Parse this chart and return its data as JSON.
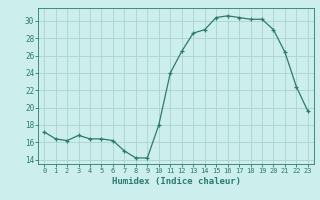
{
  "x": [
    0,
    1,
    2,
    3,
    4,
    5,
    6,
    7,
    8,
    9,
    10,
    11,
    12,
    13,
    14,
    15,
    16,
    17,
    18,
    19,
    20,
    21,
    22,
    23
  ],
  "y": [
    17.2,
    16.4,
    16.2,
    16.8,
    16.4,
    16.4,
    16.2,
    15.0,
    14.2,
    14.2,
    18.0,
    24.0,
    26.5,
    28.6,
    29.0,
    30.4,
    30.6,
    30.4,
    30.2,
    30.2,
    29.0,
    26.4,
    22.4,
    19.6
  ],
  "xlim": [
    -0.5,
    23.5
  ],
  "ylim": [
    13.5,
    31.5
  ],
  "yticks": [
    14,
    16,
    18,
    20,
    22,
    24,
    26,
    28,
    30
  ],
  "xticks": [
    0,
    1,
    2,
    3,
    4,
    5,
    6,
    7,
    8,
    9,
    10,
    11,
    12,
    13,
    14,
    15,
    16,
    17,
    18,
    19,
    20,
    21,
    22,
    23
  ],
  "xlabel": "Humidex (Indice chaleur)",
  "line_color": "#2d7a6e",
  "marker_color": "#2d7a6e",
  "bg_color": "#cceeed",
  "grid_color": "#aad4d0",
  "tick_color": "#2d7a6e",
  "xlabel_color": "#2d7a6e",
  "spine_color": "#2d7a6e",
  "font_family": "monospace"
}
